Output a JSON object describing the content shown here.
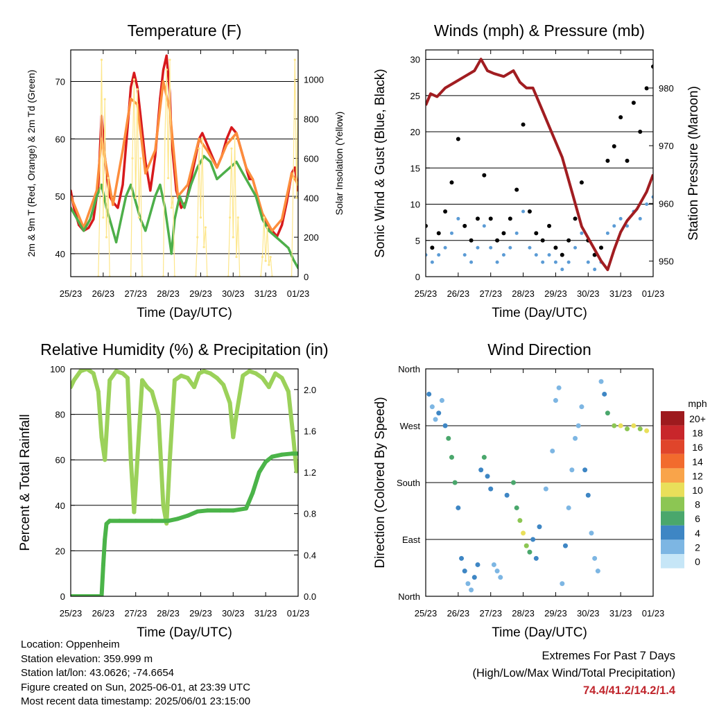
{
  "chart_data": [
    {
      "type": "line",
      "title": "Temperature (F)",
      "xlabel": "Time (Day/UTC)",
      "ylabel": "2m & 9m T (Red, Orange) & 2m Td (Green)",
      "y2label": "Solar Insolation (Yellow)",
      "x_ticks": [
        "25/23",
        "26/23",
        "27/23",
        "28/23",
        "29/23",
        "30/23",
        "31/23",
        "01/23"
      ],
      "ylim": [
        36,
        75.5
      ],
      "y_ticks": [
        40,
        50,
        60,
        70
      ],
      "y2lim": [
        0,
        1150
      ],
      "y2_ticks": [
        0,
        200,
        400,
        600,
        800,
        1000
      ],
      "grid": true,
      "series": [
        {
          "name": "2m T",
          "color": "#d7191c",
          "x": [
            0,
            0.1,
            0.25,
            0.4,
            0.55,
            0.7,
            0.85,
            0.95,
            1.05,
            1.1,
            1.2,
            1.3,
            1.45,
            1.6,
            1.75,
            1.85,
            1.95,
            2.05,
            2.15,
            2.3,
            2.45,
            2.6,
            2.75,
            2.85,
            2.95,
            3.05,
            3.1,
            3.25,
            3.4,
            3.55,
            3.7,
            3.85,
            3.95,
            4.05,
            4.2,
            4.35,
            4.5,
            4.65,
            4.8,
            4.95,
            5.1,
            5.25,
            5.4,
            5.5,
            5.6,
            5.75,
            5.9,
            6.05,
            6.2,
            6.35,
            6.5,
            6.65,
            6.8,
            6.9,
            7
          ],
          "y": [
            51,
            48,
            45,
            44,
            44.5,
            46,
            52,
            64,
            57,
            54,
            50,
            49,
            48,
            52,
            62,
            69,
            71.5,
            69,
            64,
            56,
            51,
            57,
            67,
            72,
            74.5,
            68,
            60,
            51,
            48,
            49,
            53,
            57,
            60,
            61,
            59,
            57,
            55,
            57,
            60,
            62,
            61,
            58,
            55,
            53,
            53,
            50,
            46,
            45,
            44,
            43,
            45,
            49,
            54,
            55,
            51
          ]
        },
        {
          "name": "9m T",
          "color": "#fd8d3c",
          "x": [
            0,
            0.4,
            0.8,
            0.95,
            1.1,
            1.3,
            1.6,
            1.85,
            2.05,
            2.3,
            2.6,
            2.85,
            3.05,
            3.3,
            3.6,
            3.95,
            4.2,
            4.5,
            4.8,
            5.1,
            5.4,
            5.6,
            5.9,
            6.2,
            6.5,
            6.8,
            7
          ],
          "y": [
            50,
            44.5,
            51,
            60,
            55,
            48.5,
            58,
            67,
            66,
            54,
            58,
            70,
            65,
            50,
            52,
            60,
            58,
            55,
            59,
            61,
            55,
            53,
            47,
            44,
            46,
            54,
            52
          ]
        },
        {
          "name": "2m Td",
          "color": "#4daf4a",
          "x": [
            0,
            0.2,
            0.4,
            0.6,
            0.8,
            0.95,
            1.1,
            1.25,
            1.4,
            1.55,
            1.7,
            1.85,
            2.0,
            2.15,
            2.3,
            2.45,
            2.6,
            2.75,
            2.9,
            3.0,
            3.1,
            3.2,
            3.35,
            3.5,
            3.7,
            3.9,
            4.1,
            4.3,
            4.5,
            4.7,
            4.9,
            5.1,
            5.3,
            5.5,
            5.7,
            5.9,
            6.1,
            6.3,
            6.5,
            6.7,
            6.85,
            7
          ],
          "y": [
            48,
            46,
            44,
            46,
            50,
            52,
            48,
            45,
            42,
            46,
            50,
            52,
            49,
            46,
            44,
            47,
            50,
            52,
            48,
            44,
            40,
            46,
            50,
            48,
            52,
            55,
            57,
            56,
            53,
            54,
            55,
            56,
            54,
            52,
            50,
            46,
            44,
            43,
            42,
            41,
            39,
            37.5
          ]
        },
        {
          "name": "Solar Insolation",
          "color": "#fde68a",
          "axis": "y2",
          "x": [
            0.85,
            0.9,
            0.95,
            1.0,
            1.05,
            1.1,
            1.15,
            1.2,
            1.85,
            1.9,
            1.95,
            2.0,
            2.05,
            2.1,
            2.15,
            2.2,
            2.85,
            2.9,
            2.95,
            3.0,
            3.05,
            3.1,
            3.15,
            3.2,
            3.85,
            3.9,
            3.95,
            4.0,
            4.05,
            4.1,
            4.15,
            4.2,
            4.85,
            4.9,
            4.95,
            5.0,
            5.05,
            5.1,
            5.15,
            5.2,
            5.85,
            5.9,
            5.95,
            6.0,
            6.05,
            6.1,
            6.15,
            6.2,
            6.8,
            6.85,
            6.9,
            6.95,
            7.0
          ],
          "y": [
            0,
            400,
            1100,
            300,
            900,
            200,
            500,
            0,
            0,
            600,
            1000,
            400,
            950,
            300,
            600,
            0,
            0,
            700,
            1050,
            500,
            1100,
            350,
            400,
            0,
            0,
            200,
            650,
            300,
            700,
            150,
            250,
            0,
            0,
            300,
            650,
            200,
            700,
            100,
            300,
            0,
            0,
            100,
            300,
            80,
            250,
            60,
            100,
            0,
            0,
            500,
            1100,
            400,
            1000
          ]
        }
      ]
    },
    {
      "type": "scatter",
      "title": "Winds (mph) & Pressure (mb)",
      "xlabel": "Time (Day/UTC)",
      "ylabel": "Sonic Wind & Gust (Blue, Black)",
      "y2label": "Station Pressure (Maroon)",
      "x_ticks": [
        "25/23",
        "26/23",
        "27/23",
        "28/23",
        "29/23",
        "30/23",
        "31/23",
        "01/23"
      ],
      "ylim": [
        0,
        31.3
      ],
      "y_ticks": [
        0,
        5,
        10,
        15,
        20,
        25,
        30
      ],
      "y2lim": [
        947.3,
        986.6
      ],
      "y2_ticks": [
        950,
        960,
        970,
        980
      ],
      "grid": true,
      "series": [
        {
          "name": "Gust",
          "color": "#000000",
          "x": [
            0,
            0.2,
            0.4,
            0.6,
            0.8,
            1.0,
            1.2,
            1.4,
            1.6,
            1.8,
            2.0,
            2.2,
            2.4,
            2.6,
            2.8,
            3.0,
            3.2,
            3.4,
            3.6,
            3.8,
            4.0,
            4.2,
            4.4,
            4.6,
            4.8,
            5.0,
            5.2,
            5.4,
            5.6,
            5.8,
            6.0,
            6.2,
            6.4,
            6.6,
            6.8,
            7.0
          ],
          "y": [
            7,
            4,
            6,
            9,
            13,
            19,
            7,
            5,
            8,
            14,
            8,
            5,
            6,
            8,
            12,
            21,
            9,
            6,
            5,
            7,
            4,
            3,
            5,
            8,
            13,
            5,
            3,
            4,
            16,
            18,
            22,
            16,
            24,
            20,
            26,
            29
          ]
        },
        {
          "name": "Wind",
          "color": "#5b9bd5",
          "x": [
            0,
            0.2,
            0.4,
            0.6,
            0.8,
            1.0,
            1.2,
            1.4,
            1.6,
            1.8,
            2.0,
            2.2,
            2.4,
            2.6,
            2.8,
            3.0,
            3.2,
            3.4,
            3.6,
            3.8,
            4.0,
            4.2,
            4.4,
            4.6,
            4.8,
            5.0,
            5.2,
            5.4,
            5.6,
            5.8,
            6.0,
            6.2,
            6.4,
            6.6,
            6.8,
            7.0
          ],
          "y": [
            3,
            2,
            3,
            4,
            6,
            8,
            3,
            2,
            4,
            7,
            4,
            2,
            3,
            4,
            6,
            9,
            4,
            3,
            2,
            3,
            2,
            1,
            2,
            4,
            6,
            2,
            1,
            2,
            6,
            7,
            8,
            7,
            9,
            8,
            10,
            11
          ]
        },
        {
          "name": "Pressure",
          "color": "#a11d21",
          "axis": "y2",
          "x": [
            0,
            0.15,
            0.35,
            0.6,
            0.9,
            1.2,
            1.5,
            1.7,
            1.9,
            2.1,
            2.4,
            2.7,
            2.9,
            3.1,
            3.3,
            3.6,
            3.9,
            4.2,
            4.5,
            4.8,
            5.1,
            5.4,
            5.6,
            5.8,
            6.0,
            6.2,
            6.5,
            6.8,
            7.0
          ],
          "y": [
            977,
            979,
            978.5,
            980,
            981,
            982,
            983,
            985,
            983,
            982.5,
            982,
            983,
            981,
            980,
            980,
            976,
            972,
            968,
            962,
            956,
            953,
            950,
            948.5,
            952,
            955,
            957,
            959,
            962,
            965
          ]
        }
      ]
    },
    {
      "type": "line",
      "title": "Relative Humidity (%) & Precipitation (in)",
      "xlabel": "Time (Day/UTC)",
      "ylabel": "Percent & Total Rainfall",
      "x_ticks": [
        "25/23",
        "26/23",
        "27/23",
        "28/23",
        "29/23",
        "30/23",
        "31/23",
        "01/23"
      ],
      "ylim": [
        0,
        100
      ],
      "y_ticks": [
        0,
        20,
        40,
        60,
        80,
        100
      ],
      "y2lim": [
        0,
        2.2
      ],
      "y2_ticks": [
        "0.0",
        "0.4",
        "0.8",
        "1.2",
        "1.6",
        "2.0"
      ],
      "grid": true,
      "series": [
        {
          "name": "Relative Humidity",
          "color": "#9bd15a",
          "x": [
            0,
            0.1,
            0.3,
            0.5,
            0.7,
            0.85,
            0.95,
            1.05,
            1.2,
            1.4,
            1.6,
            1.75,
            1.85,
            1.95,
            2.05,
            2.2,
            2.35,
            2.5,
            2.7,
            2.85,
            2.95,
            3.05,
            3.2,
            3.4,
            3.6,
            3.8,
            3.95,
            4.1,
            4.3,
            4.5,
            4.7,
            4.9,
            5.0,
            5.1,
            5.3,
            5.5,
            5.7,
            5.9,
            6.1,
            6.3,
            6.5,
            6.7,
            6.85,
            6.95,
            7.0
          ],
          "y": [
            92,
            95,
            99,
            100,
            98,
            90,
            70,
            60,
            95,
            99,
            98,
            96,
            60,
            37,
            60,
            95,
            92,
            90,
            80,
            40,
            32,
            60,
            95,
            97,
            96,
            92,
            98,
            99,
            98,
            96,
            93,
            85,
            70,
            80,
            97,
            99,
            98,
            96,
            92,
            98,
            96,
            90,
            70,
            55,
            58
          ]
        },
        {
          "name": "Total Precipitation",
          "color": "#4bb449",
          "axis": "y2",
          "x": [
            0,
            0.5,
            0.95,
            1.0,
            1.05,
            1.1,
            1.2,
            1.5,
            2.0,
            2.5,
            3.0,
            3.3,
            3.6,
            3.9,
            4.2,
            4.6,
            5.0,
            5.4,
            5.6,
            5.8,
            6.0,
            6.2,
            6.5,
            6.8,
            7.0
          ],
          "y": [
            0,
            0,
            0,
            0.3,
            0.55,
            0.7,
            0.73,
            0.73,
            0.73,
            0.73,
            0.73,
            0.75,
            0.78,
            0.82,
            0.83,
            0.83,
            0.83,
            0.85,
            1.0,
            1.2,
            1.3,
            1.35,
            1.37,
            1.38,
            1.38
          ]
        }
      ]
    },
    {
      "type": "scatter",
      "title": "Wind Direction",
      "xlabel": "Time (Day/UTC)",
      "ylabel": "Direction (Colored By Speed)",
      "x_ticks": [
        "25/23",
        "26/23",
        "27/23",
        "28/23",
        "29/23",
        "30/23",
        "31/23",
        "01/23"
      ],
      "ylim": [
        0,
        360
      ],
      "y_ticks": [
        "North",
        "East",
        "South",
        "West",
        "North"
      ],
      "grid": true,
      "colorbar": {
        "title": "mph",
        "labels": [
          "20+",
          "18",
          "16",
          "14",
          "12",
          "10",
          "8",
          "6",
          "4",
          "2",
          "0"
        ],
        "colors": [
          "#9e1a1e",
          "#c8262b",
          "#e0452b",
          "#f26b2d",
          "#f9a44a",
          "#e9df5a",
          "#8cc653",
          "#4aa76c",
          "#3e86c4",
          "#7db6e3",
          "#c6e6f7"
        ]
      },
      "series": [
        {
          "name": "Direction",
          "x": [
            0.1,
            0.2,
            0.3,
            0.4,
            0.5,
            0.6,
            0.7,
            0.8,
            0.9,
            1.0,
            1.1,
            1.2,
            1.3,
            1.4,
            1.5,
            1.6,
            1.7,
            1.8,
            1.9,
            2.0,
            2.1,
            2.2,
            2.3,
            2.5,
            2.7,
            2.8,
            2.9,
            3.0,
            3.1,
            3.2,
            3.3,
            3.4,
            3.5,
            3.7,
            3.9,
            4.0,
            4.1,
            4.2,
            4.3,
            4.4,
            4.5,
            4.6,
            4.7,
            4.8,
            4.9,
            5.0,
            5.1,
            5.2,
            5.3,
            5.4,
            5.5,
            5.6,
            5.8,
            6.0,
            6.2,
            6.4,
            6.6,
            6.8
          ],
          "y": [
            320,
            300,
            280,
            290,
            310,
            270,
            250,
            220,
            180,
            140,
            60,
            40,
            20,
            10,
            30,
            50,
            200,
            220,
            190,
            170,
            50,
            40,
            30,
            160,
            180,
            140,
            120,
            100,
            80,
            70,
            90,
            60,
            110,
            170,
            230,
            310,
            330,
            20,
            80,
            140,
            200,
            250,
            270,
            300,
            200,
            160,
            100,
            60,
            40,
            340,
            320,
            290,
            270,
            270,
            265,
            270,
            265,
            262
          ],
          "speed": [
            4,
            3,
            3,
            4,
            3,
            5,
            6,
            7,
            6,
            5,
            4,
            4,
            3,
            3,
            4,
            4,
            5,
            6,
            5,
            4,
            3,
            3,
            3,
            4,
            6,
            7,
            9,
            10,
            8,
            6,
            5,
            4,
            4,
            3,
            3,
            2,
            2,
            3,
            4,
            3,
            3,
            2,
            2,
            3,
            4,
            4,
            3,
            2,
            2,
            2,
            5,
            7,
            9,
            10,
            8,
            10,
            9,
            11
          ]
        }
      ]
    }
  ],
  "footer": {
    "location": "Location: Oppenheim",
    "elevation": "Station elevation: 359.999 m",
    "latlon": "Station lat/lon: 43.0626; -74.6654",
    "created": "Figure created on Sun, 2025-06-01, at 23:39 UTC",
    "recent": "Most recent data timestamp: 2025/06/01 23:15:00",
    "extremes_title": "Extremes For Past 7 Days",
    "extremes_subtitle": "(High/Low/Max Wind/Total Precipitation)",
    "extremes_values": "74.4/41.2/14.2/1.4"
  }
}
